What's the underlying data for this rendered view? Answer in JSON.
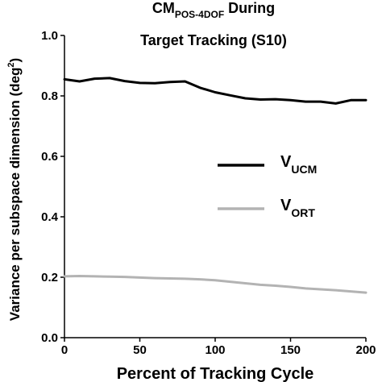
{
  "chart_data": {
    "type": "line",
    "title": {
      "line1_main": "CM",
      "line1_sub": "POS-4DOF",
      "line1_rest": " During",
      "line2": "Target Tracking (S10)"
    },
    "xlabel": "Percent of Tracking Cycle",
    "ylabel_main": "Variance per subspace dimension (deg",
    "ylabel_sup": "2",
    "ylabel_close": ")",
    "xlim": [
      0,
      200
    ],
    "ylim": [
      0,
      1.0
    ],
    "x_ticks": [
      "0",
      "50",
      "100",
      "150",
      "200"
    ],
    "y_ticks": [
      "0.0",
      "0.2",
      "0.4",
      "0.6",
      "0.8",
      "1.0"
    ],
    "legend_position": "center-right",
    "series": [
      {
        "name_main": "V",
        "name_sub": "UCM",
        "color": "#000000",
        "x": [
          0,
          10,
          20,
          30,
          40,
          50,
          60,
          70,
          80,
          90,
          100,
          110,
          120,
          130,
          140,
          150,
          160,
          170,
          180,
          190,
          200
        ],
        "y": [
          0.855,
          0.848,
          0.857,
          0.859,
          0.849,
          0.843,
          0.842,
          0.846,
          0.848,
          0.827,
          0.812,
          0.802,
          0.792,
          0.788,
          0.789,
          0.786,
          0.781,
          0.781,
          0.775,
          0.786,
          0.786
        ]
      },
      {
        "name_main": "V",
        "name_sub": "ORT",
        "color": "#b3b3b3",
        "x": [
          0,
          10,
          20,
          30,
          40,
          50,
          60,
          70,
          80,
          90,
          100,
          110,
          120,
          130,
          140,
          150,
          160,
          170,
          180,
          190,
          200
        ],
        "y": [
          0.203,
          0.204,
          0.203,
          0.202,
          0.201,
          0.199,
          0.197,
          0.196,
          0.195,
          0.193,
          0.19,
          0.185,
          0.18,
          0.175,
          0.172,
          0.168,
          0.163,
          0.16,
          0.157,
          0.153,
          0.149
        ]
      }
    ]
  }
}
